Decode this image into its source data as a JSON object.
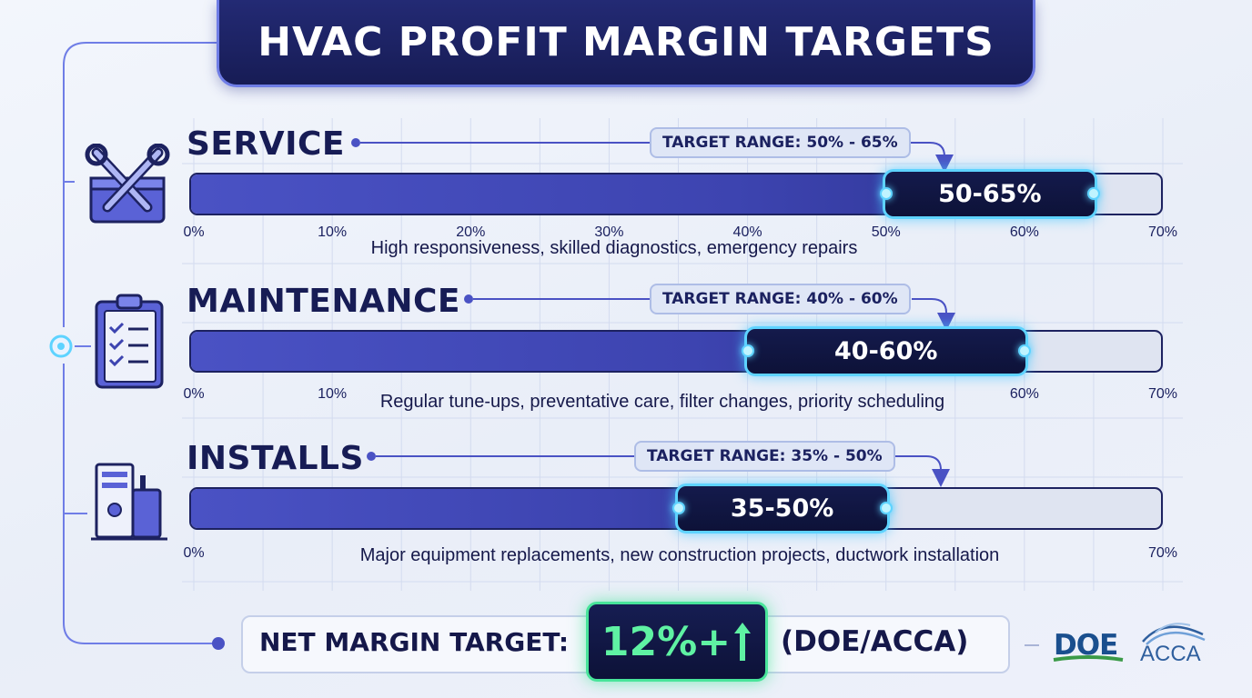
{
  "title": "HVAC PROFIT MARGIN TARGETS",
  "chart_data": {
    "type": "bar",
    "xlim": [
      0,
      70
    ],
    "categories": [
      "SERVICE",
      "MAINTENANCE",
      "INSTALLS"
    ],
    "sections": [
      {
        "name": "SERVICE",
        "icon": "tools-wrench-icon",
        "target_label": "TARGET RANGE: 50% - 65%",
        "range_label": "50-65%",
        "range_min": 50,
        "range_max": 65,
        "description": "High responsiveness, skilled diagnostics, emergency repairs",
        "ticks": [
          "0%",
          "10%",
          "20%",
          "30%",
          "40%",
          "50%",
          "60%",
          "70%"
        ]
      },
      {
        "name": "MAINTENANCE",
        "icon": "clipboard-checklist-icon",
        "target_label": "TARGET RANGE: 40% - 60%",
        "range_label": "40-60%",
        "range_min": 40,
        "range_max": 60,
        "description": "Regular tune-ups, preventative care, filter changes, priority scheduling",
        "ticks": [
          "0%",
          "10%",
          "",
          "",
          "",
          "",
          "60%",
          "70%"
        ]
      },
      {
        "name": "INSTALLS",
        "icon": "hvac-unit-icon",
        "target_label": "TARGET RANGE: 35% - 50%",
        "range_label": "35-50%",
        "range_min": 35,
        "range_max": 50,
        "description": "Major equipment replacements, new construction projects, ductwork installation",
        "ticks": [
          "0%",
          "",
          "",
          "",
          "",
          "",
          "",
          "70%"
        ]
      }
    ]
  },
  "net_margin": {
    "label": "NET MARGIN TARGET:",
    "value": "12%+",
    "source": "(DOE/ACCA)"
  },
  "logos": {
    "doe": "DOE",
    "acca": "ACCA"
  },
  "colors": {
    "navy": "#171c55",
    "bar_fill": "#4a52c4",
    "glow_cyan": "#5ed3ff",
    "net_green": "#5ff2a3"
  }
}
